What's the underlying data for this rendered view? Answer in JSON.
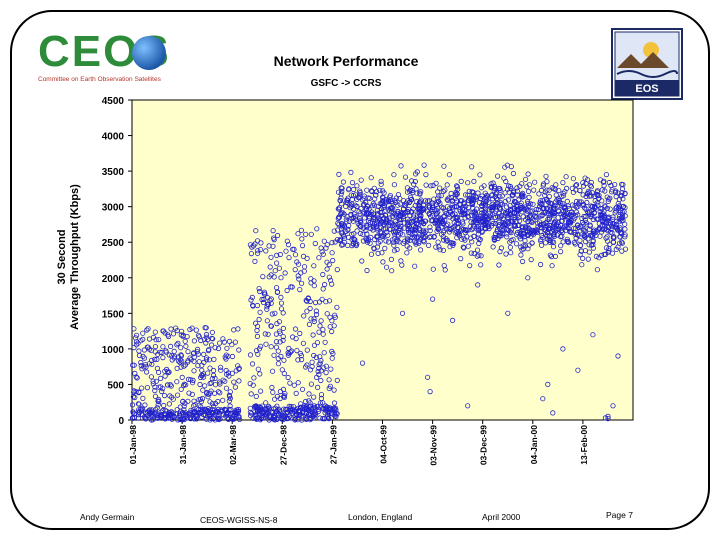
{
  "logos": {
    "ceos_letters": "CEOS",
    "ceos_tagline": "Committee on Earth Observation Satellites",
    "eos_label": "EOS"
  },
  "chart_data": {
    "type": "scatter",
    "title": "Network Performance",
    "subtitle": "GSFC -> CCRS",
    "ylabel_line1": "30 Second",
    "ylabel_line2": "Average Throughput (Kbps)",
    "xlabel": "",
    "ylim": [
      0,
      4500
    ],
    "yticks": [
      0,
      500,
      1000,
      1500,
      2000,
      2500,
      3000,
      3500,
      4000,
      4500
    ],
    "xlim": [
      0,
      10
    ],
    "xticks": [
      {
        "label": "01-Jan-98",
        "x": 0
      },
      {
        "label": "31-Jan-98",
        "x": 1
      },
      {
        "label": "02-Mar-98",
        "x": 2
      },
      {
        "label": "27-Dec-98",
        "x": 3
      },
      {
        "label": "27-Jan-99",
        "x": 4
      },
      {
        "label": "04-Oct-99",
        "x": 5
      },
      {
        "label": "03-Nov-99",
        "x": 6
      },
      {
        "label": "03-Dec-99",
        "x": 7
      },
      {
        "label": "04-Jan-00",
        "x": 8
      },
      {
        "label": "13-Feb-00",
        "x": 9
      }
    ],
    "grid": false,
    "plot_background": "#ffffcc",
    "marker": "open-circle",
    "marker_color": "#2222cc",
    "series": [
      {
        "name": "throughput_period_1",
        "x_range": [
          0.0,
          2.15
        ],
        "y_band": [
          0,
          1300
        ],
        "y_dense_low": [
          0,
          150
        ],
        "density": 500
      },
      {
        "name": "throughput_period_2",
        "x_range": [
          2.35,
          4.1
        ],
        "y_band": [
          0,
          2700
        ],
        "y_dense_low": [
          0,
          200
        ],
        "density": 500
      },
      {
        "name": "throughput_period_3",
        "x_range": [
          4.1,
          9.85
        ],
        "y_band": [
          2100,
          3900
        ],
        "center": 2850,
        "density": 1600
      },
      {
        "name": "outliers_period_3",
        "points": [
          [
            4.6,
            800
          ],
          [
            5.9,
            600
          ],
          [
            6.0,
            1700
          ],
          [
            6.4,
            1400
          ],
          [
            6.9,
            1900
          ],
          [
            7.5,
            1500
          ],
          [
            8.2,
            300
          ],
          [
            8.6,
            1000
          ],
          [
            8.9,
            700
          ],
          [
            9.2,
            1200
          ],
          [
            9.6,
            200
          ],
          [
            9.7,
            900
          ],
          [
            5.4,
            1500
          ],
          [
            6.7,
            200
          ],
          [
            7.9,
            2000
          ],
          [
            8.4,
            100
          ],
          [
            9.5,
            50
          ],
          [
            9.45,
            30
          ],
          [
            9.5,
            20
          ],
          [
            5.95,
            400
          ],
          [
            8.3,
            500
          ]
        ]
      }
    ]
  },
  "footer": {
    "author": "Andy Germain",
    "document_id": "CEOS-WGISS-NS-8",
    "location": "London, England",
    "date": "April 2000",
    "page": "Page 7"
  }
}
